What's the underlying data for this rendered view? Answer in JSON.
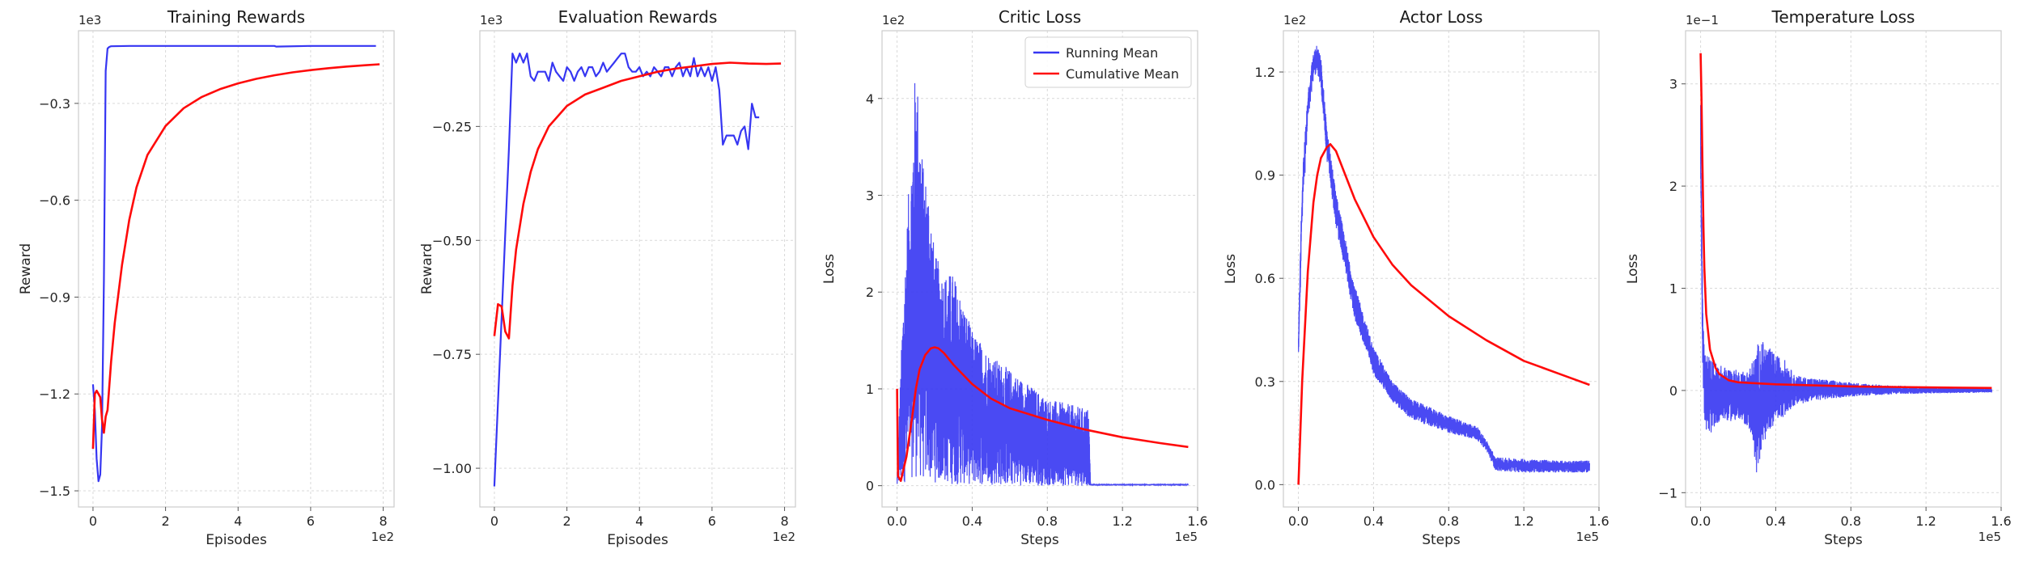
{
  "legend": [
    {
      "name": "Running Mean",
      "color": "#3636f2"
    },
    {
      "name": "Cumulative Mean",
      "color": "#ff0a0a"
    }
  ],
  "chart_data": [
    {
      "type": "line",
      "title": "Training Rewards",
      "xlabel": "Episodes",
      "ylabel": "Reward",
      "x_offset_text": "1e2",
      "y_offset_text": "1e3",
      "xlim": [
        -0.4,
        8.3
      ],
      "ylim": [
        -1.55,
        -0.075
      ],
      "xticks": [
        0,
        2,
        4,
        6,
        8
      ],
      "xtick_labels": [
        "0",
        "2",
        "4",
        "6",
        "8"
      ],
      "yticks": [
        -1.5,
        -1.2,
        -0.9,
        -0.6,
        -0.3
      ],
      "ytick_labels": [
        "−1.5",
        "−1.2",
        "−0.9",
        "−0.6",
        "−0.3"
      ],
      "grid": true,
      "series": [
        {
          "color": "#3636f2",
          "x": [
            0,
            0.05,
            0.1,
            0.15,
            0.2,
            0.25,
            0.3,
            0.35,
            0.4,
            0.45,
            0.5,
            1.0,
            2.0,
            3.0,
            4.0,
            5.0,
            5.05,
            6.0,
            7.0,
            7.8
          ],
          "y": [
            -1.17,
            -1.25,
            -1.4,
            -1.47,
            -1.45,
            -1.3,
            -0.85,
            -0.2,
            -0.13,
            -0.125,
            -0.123,
            -0.122,
            -0.122,
            -0.122,
            -0.122,
            -0.122,
            -0.124,
            -0.122,
            -0.122,
            -0.122
          ]
        },
        {
          "color": "#ff0a0a",
          "x": [
            0,
            0.05,
            0.1,
            0.15,
            0.2,
            0.25,
            0.3,
            0.35,
            0.4,
            0.5,
            0.6,
            0.8,
            1.0,
            1.2,
            1.5,
            2.0,
            2.5,
            3.0,
            3.5,
            4.0,
            4.5,
            5.0,
            5.5,
            6.0,
            6.5,
            7.0,
            7.5,
            7.9
          ],
          "y": [
            -1.37,
            -1.2,
            -1.19,
            -1.2,
            -1.21,
            -1.28,
            -1.32,
            -1.27,
            -1.25,
            -1.1,
            -0.98,
            -0.8,
            -0.66,
            -0.56,
            -0.46,
            -0.37,
            -0.315,
            -0.28,
            -0.256,
            -0.238,
            -0.224,
            -0.213,
            -0.204,
            -0.197,
            -0.191,
            -0.186,
            -0.182,
            -0.179
          ]
        }
      ]
    },
    {
      "type": "line",
      "title": "Evaluation Rewards",
      "xlabel": "Episodes",
      "ylabel": "Reward",
      "x_offset_text": "1e2",
      "y_offset_text": "1e3",
      "xlim": [
        -0.4,
        8.3
      ],
      "ylim": [
        -1.085,
        -0.04
      ],
      "xticks": [
        0,
        2,
        4,
        6,
        8
      ],
      "xtick_labels": [
        "0",
        "2",
        "4",
        "6",
        "8"
      ],
      "yticks": [
        -1.0,
        -0.75,
        -0.5,
        -0.25
      ],
      "ytick_labels": [
        "−1.00",
        "−0.75",
        "−0.50",
        "−0.25"
      ],
      "grid": true,
      "series": [
        {
          "color": "#3636f2",
          "x": [
            0,
            0.4,
            0.5,
            0.6,
            0.7,
            0.8,
            0.9,
            1.0,
            1.1,
            1.2,
            1.3,
            1.4,
            1.5,
            1.6,
            1.7,
            1.8,
            1.9,
            2.0,
            2.1,
            2.2,
            2.3,
            2.4,
            2.5,
            2.6,
            2.7,
            2.8,
            2.9,
            3.0,
            3.1,
            3.2,
            3.3,
            3.4,
            3.5,
            3.6,
            3.7,
            3.8,
            3.9,
            4.0,
            4.1,
            4.2,
            4.3,
            4.4,
            4.5,
            4.6,
            4.7,
            4.8,
            4.9,
            5.0,
            5.1,
            5.2,
            5.3,
            5.4,
            5.5,
            5.6,
            5.7,
            5.8,
            5.9,
            6.0,
            6.1,
            6.2,
            6.3,
            6.4,
            6.5,
            6.6,
            6.7,
            6.8,
            6.9,
            7.0,
            7.1,
            7.2,
            7.3
          ],
          "y": [
            -1.04,
            -0.3,
            -0.09,
            -0.11,
            -0.09,
            -0.11,
            -0.09,
            -0.14,
            -0.15,
            -0.13,
            -0.13,
            -0.13,
            -0.15,
            -0.11,
            -0.13,
            -0.14,
            -0.15,
            -0.12,
            -0.13,
            -0.15,
            -0.13,
            -0.12,
            -0.14,
            -0.12,
            -0.12,
            -0.14,
            -0.13,
            -0.11,
            -0.13,
            -0.12,
            -0.11,
            -0.1,
            -0.09,
            -0.09,
            -0.12,
            -0.13,
            -0.13,
            -0.12,
            -0.14,
            -0.13,
            -0.14,
            -0.12,
            -0.13,
            -0.14,
            -0.12,
            -0.12,
            -0.14,
            -0.12,
            -0.11,
            -0.14,
            -0.12,
            -0.14,
            -0.1,
            -0.14,
            -0.12,
            -0.14,
            -0.12,
            -0.15,
            -0.12,
            -0.17,
            -0.29,
            -0.27,
            -0.27,
            -0.27,
            -0.29,
            -0.26,
            -0.25,
            -0.3,
            -0.2,
            -0.23,
            -0.23
          ]
        },
        {
          "color": "#ff0a0a",
          "x": [
            0,
            0.1,
            0.2,
            0.3,
            0.4,
            0.5,
            0.6,
            0.8,
            1.0,
            1.2,
            1.5,
            2.0,
            2.5,
            3.0,
            3.5,
            4.0,
            4.5,
            5.0,
            5.5,
            6.0,
            6.5,
            7.0,
            7.5,
            7.9
          ],
          "y": [
            -0.71,
            -0.64,
            -0.645,
            -0.7,
            -0.715,
            -0.6,
            -0.52,
            -0.42,
            -0.35,
            -0.3,
            -0.25,
            -0.205,
            -0.18,
            -0.165,
            -0.15,
            -0.14,
            -0.13,
            -0.123,
            -0.118,
            -0.113,
            -0.11,
            -0.112,
            -0.113,
            -0.112
          ]
        }
      ]
    },
    {
      "type": "line",
      "title": "Critic Loss",
      "xlabel": "Steps",
      "ylabel": "Loss",
      "x_offset_text": "1e5",
      "y_offset_text": "1e2",
      "xlim": [
        -0.08,
        1.6
      ],
      "ylim": [
        -0.22,
        4.7
      ],
      "xticks": [
        0,
        0.4,
        0.8,
        1.2,
        1.6
      ],
      "xtick_labels": [
        "0.0",
        "0.4",
        "0.8",
        "1.2",
        "1.6"
      ],
      "yticks": [
        0,
        1,
        2,
        3,
        4
      ],
      "ytick_labels": [
        "0",
        "1",
        "2",
        "3",
        "4"
      ],
      "grid": true,
      "legend_position": "top-right",
      "series": [
        {
          "color": "#3636f2",
          "noisy": true,
          "env_x": [
            0,
            0.03,
            0.06,
            0.08,
            0.1,
            0.12,
            0.14,
            0.17,
            0.2,
            0.25,
            0.3,
            0.4,
            0.5,
            0.6,
            0.7,
            0.8,
            0.9,
            1.0,
            1.02,
            1.03,
            1.55
          ],
          "env_hi": [
            0.1,
            1.8,
            3.0,
            3.5,
            4.5,
            3.8,
            3.3,
            3.1,
            2.4,
            2.2,
            2.2,
            1.6,
            1.35,
            1.2,
            1.05,
            0.9,
            0.85,
            0.8,
            0.8,
            0.02,
            0.02
          ],
          "env_lo": [
            0.0,
            0.02,
            0.05,
            0.08,
            0.08,
            0.06,
            0.05,
            0.04,
            0.03,
            0.02,
            0.01,
            0.01,
            0.01,
            0.0,
            0.0,
            0.0,
            0.0,
            0.0,
            0.0,
            0.0,
            0.0
          ]
        },
        {
          "color": "#ff0a0a",
          "x": [
            0,
            0.005,
            0.02,
            0.05,
            0.08,
            0.1,
            0.12,
            0.15,
            0.18,
            0.2,
            0.22,
            0.25,
            0.3,
            0.4,
            0.5,
            0.6,
            0.8,
            1.0,
            1.2,
            1.4,
            1.55
          ],
          "y": [
            1.0,
            0.1,
            0.05,
            0.3,
            0.7,
            1.0,
            1.2,
            1.35,
            1.42,
            1.43,
            1.42,
            1.37,
            1.25,
            1.05,
            0.9,
            0.8,
            0.68,
            0.58,
            0.5,
            0.44,
            0.4
          ]
        }
      ]
    },
    {
      "type": "line",
      "title": "Actor Loss",
      "xlabel": "Steps",
      "ylabel": "Loss",
      "x_offset_text": "1e5",
      "y_offset_text": "1e2",
      "xlim": [
        -0.08,
        1.6
      ],
      "ylim": [
        -0.065,
        1.32
      ],
      "xticks": [
        0,
        0.4,
        0.8,
        1.2,
        1.6
      ],
      "xtick_labels": [
        "0.0",
        "0.4",
        "0.8",
        "1.2",
        "1.6"
      ],
      "yticks": [
        0,
        0.3,
        0.6,
        0.9,
        1.2
      ],
      "ytick_labels": [
        "0.0",
        "0.3",
        "0.6",
        "0.9",
        "1.2"
      ],
      "grid": true,
      "series": [
        {
          "color": "#3636f2",
          "noisy": true,
          "env_x": [
            0,
            0.02,
            0.05,
            0.08,
            0.1,
            0.12,
            0.15,
            0.2,
            0.3,
            0.4,
            0.5,
            0.6,
            0.8,
            0.95,
            1.0,
            1.05,
            1.2,
            1.4,
            1.55
          ],
          "env_hi": [
            0.45,
            0.9,
            1.15,
            1.26,
            1.28,
            1.24,
            1.05,
            0.85,
            0.58,
            0.4,
            0.3,
            0.25,
            0.2,
            0.17,
            0.13,
            0.08,
            0.075,
            0.07,
            0.07
          ],
          "env_lo": [
            0.35,
            0.75,
            1.05,
            1.18,
            1.2,
            1.15,
            0.95,
            0.75,
            0.48,
            0.32,
            0.24,
            0.19,
            0.15,
            0.13,
            0.1,
            0.04,
            0.035,
            0.035,
            0.035
          ]
        },
        {
          "color": "#ff0a0a",
          "x": [
            0,
            0.02,
            0.05,
            0.08,
            0.1,
            0.12,
            0.15,
            0.17,
            0.2,
            0.25,
            0.3,
            0.4,
            0.5,
            0.6,
            0.8,
            1.0,
            1.2,
            1.4,
            1.55
          ],
          "y": [
            0.0,
            0.3,
            0.62,
            0.82,
            0.9,
            0.95,
            0.98,
            0.99,
            0.97,
            0.9,
            0.83,
            0.72,
            0.64,
            0.58,
            0.49,
            0.42,
            0.36,
            0.32,
            0.29
          ]
        }
      ]
    },
    {
      "type": "line",
      "title": "Temperature Loss",
      "xlabel": "Steps",
      "ylabel": "Loss",
      "x_offset_text": "1e5",
      "y_offset_text": "1e−1",
      "xlim": [
        -0.08,
        1.6
      ],
      "ylim": [
        -1.14,
        3.52
      ],
      "xticks": [
        0,
        0.4,
        0.8,
        1.2,
        1.6
      ],
      "xtick_labels": [
        "0.0",
        "0.4",
        "0.8",
        "1.2",
        "1.6"
      ],
      "yticks": [
        -1,
        0,
        1,
        2,
        3
      ],
      "ytick_labels": [
        "−1",
        "0",
        "1",
        "2",
        "3"
      ],
      "grid": true,
      "series": [
        {
          "color": "#3636f2",
          "noisy": true,
          "env_x": [
            0,
            0.005,
            0.01,
            0.02,
            0.04,
            0.06,
            0.1,
            0.15,
            0.2,
            0.25,
            0.28,
            0.3,
            0.32,
            0.35,
            0.4,
            0.45,
            0.5,
            0.6,
            0.7,
            0.8,
            1.0,
            1.2,
            1.55
          ],
          "env_hi": [
            2.9,
            2.0,
            1.0,
            0.4,
            0.35,
            0.3,
            0.25,
            0.22,
            0.2,
            0.2,
            0.3,
            0.45,
            0.5,
            0.45,
            0.35,
            0.3,
            0.15,
            0.12,
            0.1,
            0.08,
            0.05,
            0.04,
            0.03
          ],
          "env_lo": [
            2.0,
            1.2,
            0.3,
            -0.3,
            -0.5,
            -0.4,
            -0.3,
            -0.3,
            -0.3,
            -0.35,
            -0.5,
            -1.0,
            -0.6,
            -0.45,
            -0.3,
            -0.25,
            -0.15,
            -0.1,
            -0.08,
            -0.06,
            -0.04,
            -0.03,
            -0.02
          ]
        },
        {
          "color": "#ff0a0a",
          "x": [
            0,
            0.005,
            0.01,
            0.015,
            0.02,
            0.03,
            0.05,
            0.08,
            0.1,
            0.15,
            0.2,
            0.3,
            0.4,
            0.6,
            0.8,
            1.0,
            1.2,
            1.55
          ],
          "y": [
            3.3,
            2.85,
            2.2,
            1.6,
            1.2,
            0.75,
            0.4,
            0.22,
            0.16,
            0.1,
            0.08,
            0.07,
            0.06,
            0.05,
            0.04,
            0.035,
            0.03,
            0.025
          ]
        }
      ]
    }
  ]
}
